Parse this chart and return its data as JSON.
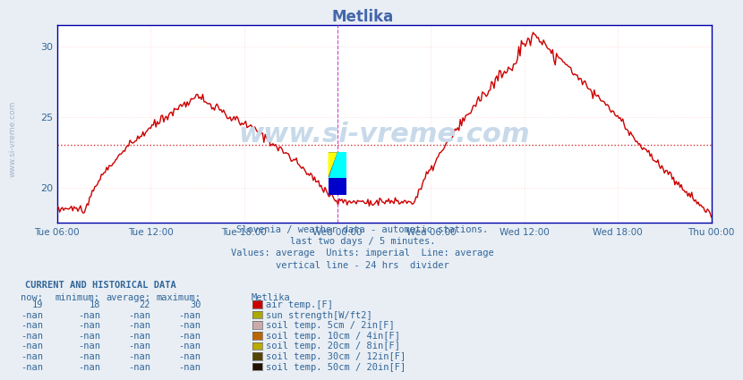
{
  "title": "Metlika",
  "title_color": "#4466aa",
  "subtitle_lines": [
    "Slovenia / weather data - automatic stations.",
    "last two days / 5 minutes.",
    "Values: average  Units: imperial  Line: average",
    "vertical line - 24 hrs  divider"
  ],
  "watermark": "www.si-vreme.com",
  "watermark_color": "#c8daea",
  "ylim": [
    17.5,
    31.5
  ],
  "yticks": [
    20,
    25,
    30
  ],
  "avg_line": 23.0,
  "x_total_hours": 42,
  "x_tick_labels": [
    "Tue 06:00",
    "Tue 12:00",
    "Tue 18:00",
    "Wed 00:00",
    "Wed 06:00",
    "Wed 12:00",
    "Wed 18:00",
    "Thu 00:00"
  ],
  "x_tick_positions": [
    0,
    6,
    12,
    18,
    24,
    30,
    36,
    42
  ],
  "divider_x": 18,
  "end_line_x": 42,
  "divider_color": "#cc44cc",
  "grid_color": "#ffcccc",
  "bg_color": "#e8eef4",
  "plot_bg": "#ffffff",
  "line_color": "#cc0000",
  "line_width": 1.0,
  "legend_items": [
    {
      "label": "air temp.[F]",
      "color": "#cc0000"
    },
    {
      "label": "sun strength[W/ft2]",
      "color": "#aaaa00"
    },
    {
      "label": "soil temp. 5cm / 2in[F]",
      "color": "#ccaaaa"
    },
    {
      "label": "soil temp. 10cm / 4in[F]",
      "color": "#bb6600"
    },
    {
      "label": "soil temp. 20cm / 8in[F]",
      "color": "#bbaa00"
    },
    {
      "label": "soil temp. 30cm / 12in[F]",
      "color": "#554400"
    },
    {
      "label": "soil temp. 50cm / 20in[F]",
      "color": "#221100"
    }
  ],
  "table_headers": [
    "now:",
    "minimum:",
    "average:",
    "maximum:",
    "Metlika"
  ],
  "header_color": "#336699",
  "table_color": "#336699",
  "axis_color": "#0000aa"
}
